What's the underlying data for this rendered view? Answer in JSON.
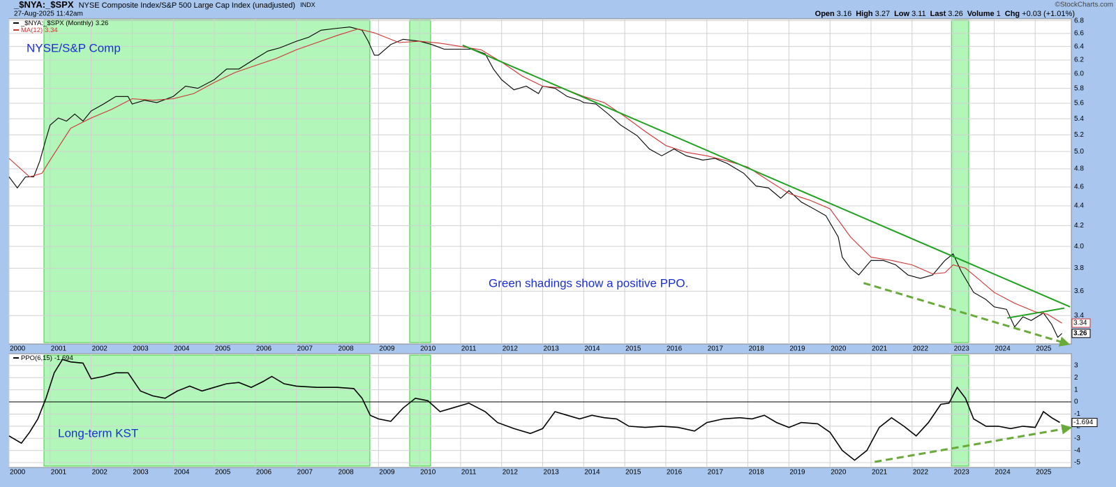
{
  "header": {
    "symbol": "_$NYA:_$SPX",
    "description": "NYSE Composite Index/S&P 500 Large Cap Index (unadjusted)",
    "exchange": "INDX",
    "date": "27-Aug-2025 11:42am",
    "watermark": "©StockCharts.com",
    "quote": [
      {
        "label": "Open",
        "value": 3.16
      },
      {
        "label": "High",
        "value": 3.27
      },
      {
        "label": "Low",
        "value": 3.11
      },
      {
        "label": "Last",
        "value": 3.26
      },
      {
        "label": "Volume",
        "value": 1
      },
      {
        "label": "Chg",
        "value": "+0.03 (+1.01%)"
      }
    ]
  },
  "chart_data": [
    {
      "type": "line",
      "log": true,
      "grid": true,
      "xlim": [
        2000,
        2025.88
      ],
      "xticks": [
        2000,
        2001,
        2002,
        2003,
        2004,
        2005,
        2006,
        2007,
        2008,
        2009,
        2010,
        2011,
        2012,
        2013,
        2014,
        2015,
        2016,
        2017,
        2018,
        2019,
        2020,
        2021,
        2022,
        2023,
        2024,
        2025
      ],
      "ylim": [
        3.18,
        6.83
      ],
      "yticks": [
        3.4,
        3.6,
        3.8,
        {
          "value": 4,
          "label": "4.0"
        },
        4.2,
        4.4,
        4.6,
        4.8,
        {
          "value": 5,
          "label": "5.0"
        },
        5.2,
        5.4,
        5.6,
        5.8,
        {
          "value": 6,
          "label": "6.0"
        },
        6.2,
        6.4,
        6.6,
        6.8
      ],
      "annotations": [
        "NYSE/S&P Comp",
        "Green shadings show a positive PPO."
      ],
      "shading": [
        [
          2000.85,
          2008.79
        ],
        [
          2009.76,
          2010.27
        ],
        [
          2022.96,
          2023.38
        ]
      ],
      "shading_color": "#9ff5a8",
      "series": [
        {
          "name": "_$NYA:_$SPX (Monthly)",
          "color": "#000000",
          "last": 3.26,
          "x": [
            2000.0,
            2000.2,
            2000.4,
            2000.6,
            2000.75,
            2000.9,
            2001.0,
            2001.2,
            2001.4,
            2001.6,
            2001.8,
            2002.0,
            2002.3,
            2002.6,
            2002.9,
            2003.0,
            2003.3,
            2003.6,
            2004.0,
            2004.3,
            2004.6,
            2005.0,
            2005.3,
            2005.6,
            2006.0,
            2006.3,
            2006.6,
            2007.0,
            2007.3,
            2007.6,
            2008.0,
            2008.3,
            2008.6,
            2008.75,
            2008.9,
            2009.0,
            2009.3,
            2009.6,
            2010.0,
            2010.3,
            2010.6,
            2011.0,
            2011.3,
            2011.6,
            2011.8,
            2012.0,
            2012.3,
            2012.6,
            2012.9,
            2013.0,
            2013.3,
            2013.6,
            2013.9,
            2014.0,
            2014.3,
            2014.6,
            2014.9,
            2015.3,
            2015.6,
            2015.9,
            2016.2,
            2016.5,
            2016.9,
            2017.2,
            2017.5,
            2017.9,
            2018.2,
            2018.5,
            2018.8,
            2019.0,
            2019.3,
            2019.6,
            2019.9,
            2020.2,
            2020.3,
            2020.5,
            2020.7,
            2021.0,
            2021.3,
            2021.6,
            2021.9,
            2022.2,
            2022.5,
            2022.8,
            2023.0,
            2023.2,
            2023.5,
            2023.8,
            2024.0,
            2024.3,
            2024.5,
            2024.7,
            2024.9,
            2025.2,
            2025.4,
            2025.55,
            2025.65
          ],
          "values": [
            4.71,
            4.59,
            4.71,
            4.71,
            4.89,
            5.15,
            5.32,
            5.41,
            5.37,
            5.46,
            5.37,
            5.5,
            5.59,
            5.69,
            5.69,
            5.59,
            5.64,
            5.61,
            5.69,
            5.83,
            5.8,
            5.92,
            6.07,
            6.07,
            6.22,
            6.33,
            6.38,
            6.48,
            6.54,
            6.65,
            6.68,
            6.7,
            6.65,
            6.48,
            6.27,
            6.27,
            6.43,
            6.51,
            6.48,
            6.43,
            6.36,
            6.36,
            6.36,
            6.29,
            6.07,
            5.92,
            5.78,
            5.83,
            5.73,
            5.83,
            5.8,
            5.69,
            5.64,
            5.61,
            5.59,
            5.46,
            5.32,
            5.19,
            5.03,
            4.95,
            5.03,
            4.95,
            4.9,
            4.92,
            4.86,
            4.75,
            4.61,
            4.59,
            4.48,
            4.56,
            4.44,
            4.37,
            4.3,
            4.09,
            3.9,
            3.8,
            3.74,
            3.87,
            3.87,
            3.83,
            3.74,
            3.71,
            3.74,
            3.87,
            3.93,
            3.77,
            3.59,
            3.53,
            3.47,
            3.45,
            3.31,
            3.39,
            3.36,
            3.42,
            3.33,
            3.23,
            3.26
          ]
        },
        {
          "name": "MA(12)",
          "color": "#cc3333",
          "last": 3.34,
          "x": [
            2000.0,
            2000.5,
            2000.8,
            2001.0,
            2001.5,
            2002.0,
            2002.5,
            2003.0,
            2003.5,
            2004.0,
            2004.5,
            2005.0,
            2005.5,
            2006.0,
            2006.5,
            2007.0,
            2007.5,
            2008.0,
            2008.5,
            2008.9,
            2009.5,
            2010.0,
            2010.5,
            2011.0,
            2011.5,
            2012.0,
            2012.5,
            2013.0,
            2013.5,
            2014.0,
            2014.5,
            2015.0,
            2015.5,
            2016.0,
            2016.5,
            2017.0,
            2017.5,
            2018.0,
            2018.5,
            2019.0,
            2019.5,
            2020.0,
            2020.5,
            2021.0,
            2021.5,
            2022.0,
            2022.5,
            2022.8,
            2023.0,
            2023.3,
            2023.6,
            2024.0,
            2024.5,
            2025.0,
            2025.3,
            2025.65
          ],
          "values": [
            4.92,
            4.71,
            4.75,
            4.9,
            5.28,
            5.41,
            5.52,
            5.66,
            5.64,
            5.66,
            5.73,
            5.88,
            6.02,
            6.12,
            6.22,
            6.35,
            6.46,
            6.57,
            6.67,
            6.61,
            6.46,
            6.48,
            6.45,
            6.4,
            6.35,
            6.17,
            5.97,
            5.83,
            5.8,
            5.69,
            5.61,
            5.43,
            5.24,
            5.07,
            4.99,
            4.95,
            4.89,
            4.82,
            4.67,
            4.53,
            4.46,
            4.37,
            4.09,
            3.9,
            3.87,
            3.83,
            3.75,
            3.76,
            3.83,
            3.8,
            3.71,
            3.59,
            3.5,
            3.43,
            3.41,
            3.34
          ]
        }
      ],
      "trendlines": [
        {
          "x": [
            2011.05,
            2025.85
          ],
          "values": [
            6.42,
            3.47
          ],
          "color": "#22a022",
          "dashed": false,
          "arrow": false
        },
        {
          "x": [
            2024.32,
            2025.71
          ],
          "values": [
            3.38,
            3.46
          ],
          "color": "#22a022",
          "dashed": false,
          "arrow": false
        },
        {
          "x": [
            2020.82,
            2025.8
          ],
          "values": [
            3.67,
            3.18
          ],
          "color": "#6aaa3a",
          "dashed": true,
          "arrow": true
        }
      ]
    },
    {
      "type": "line",
      "log": false,
      "grid": true,
      "xlim": [
        2000,
        2025.88
      ],
      "xticks": [
        2000,
        2001,
        2002,
        2003,
        2004,
        2005,
        2006,
        2007,
        2008,
        2009,
        2010,
        2011,
        2012,
        2013,
        2014,
        2015,
        2016,
        2017,
        2018,
        2019,
        2020,
        2021,
        2022,
        2023,
        2024,
        2025
      ],
      "ylim": [
        -5.4,
        3.97
      ],
      "yticks": [
        3,
        2,
        1,
        0,
        -1,
        -2,
        -3,
        -4,
        -5
      ],
      "annotations": [
        "Long-term KST"
      ],
      "series": [
        {
          "name": "PPO(6,15)",
          "color": "#000000",
          "last": -1.694,
          "x": [
            2000.0,
            2000.3,
            2000.5,
            2000.7,
            2000.9,
            2001.1,
            2001.3,
            2001.5,
            2001.8,
            2002.0,
            2002.3,
            2002.6,
            2002.9,
            2003.2,
            2003.5,
            2003.8,
            2004.1,
            2004.4,
            2004.7,
            2005.0,
            2005.3,
            2005.6,
            2005.9,
            2006.2,
            2006.4,
            2006.7,
            2007.0,
            2007.5,
            2008.0,
            2008.4,
            2008.6,
            2008.8,
            2009.0,
            2009.3,
            2009.6,
            2009.9,
            2010.2,
            2010.5,
            2010.8,
            2011.2,
            2011.6,
            2011.9,
            2012.3,
            2012.7,
            2013.0,
            2013.3,
            2013.6,
            2013.9,
            2014.2,
            2014.5,
            2014.8,
            2015.1,
            2015.5,
            2015.9,
            2016.3,
            2016.7,
            2017.0,
            2017.4,
            2017.8,
            2018.1,
            2018.4,
            2018.7,
            2019.0,
            2019.3,
            2019.7,
            2020.0,
            2020.3,
            2020.6,
            2020.9,
            2021.2,
            2021.5,
            2021.8,
            2022.1,
            2022.4,
            2022.7,
            2022.9,
            2023.1,
            2023.3,
            2023.5,
            2023.8,
            2024.1,
            2024.4,
            2024.7,
            2025.0,
            2025.2,
            2025.4,
            2025.6
          ],
          "values": [
            -2.8,
            -3.4,
            -2.5,
            -1.4,
            0.3,
            2.4,
            3.5,
            3.3,
            3.2,
            1.9,
            2.1,
            2.4,
            2.4,
            0.9,
            0.5,
            0.3,
            0.9,
            1.3,
            0.9,
            1.2,
            1.5,
            1.6,
            1.2,
            1.7,
            2.1,
            1.5,
            1.3,
            1.2,
            1.2,
            1.1,
            0.3,
            -1.1,
            -1.4,
            -1.6,
            -0.5,
            0.3,
            0.1,
            -0.8,
            -0.5,
            -0.1,
            -0.8,
            -1.7,
            -2.2,
            -2.6,
            -2.2,
            -0.8,
            -1.1,
            -1.4,
            -1.1,
            -1.3,
            -1.4,
            -2.0,
            -2.1,
            -2.0,
            -2.1,
            -2.4,
            -1.7,
            -1.4,
            -1.3,
            -1.4,
            -1.1,
            -1.7,
            -2.1,
            -1.7,
            -1.8,
            -2.5,
            -4.0,
            -4.8,
            -4.0,
            -2.1,
            -1.3,
            -2.0,
            -2.8,
            -1.7,
            -0.2,
            -0.1,
            1.2,
            0.3,
            -1.4,
            -2.0,
            -2.0,
            -2.2,
            -2.0,
            -2.1,
            -0.8,
            -1.3,
            -1.694
          ]
        }
      ],
      "trendlines": [
        {
          "x": [
            2021.09,
            2025.85
          ],
          "values": [
            -4.94,
            -2.13
          ],
          "color": "#6aaa3a",
          "dashed": true,
          "arrow": true
        }
      ]
    }
  ]
}
